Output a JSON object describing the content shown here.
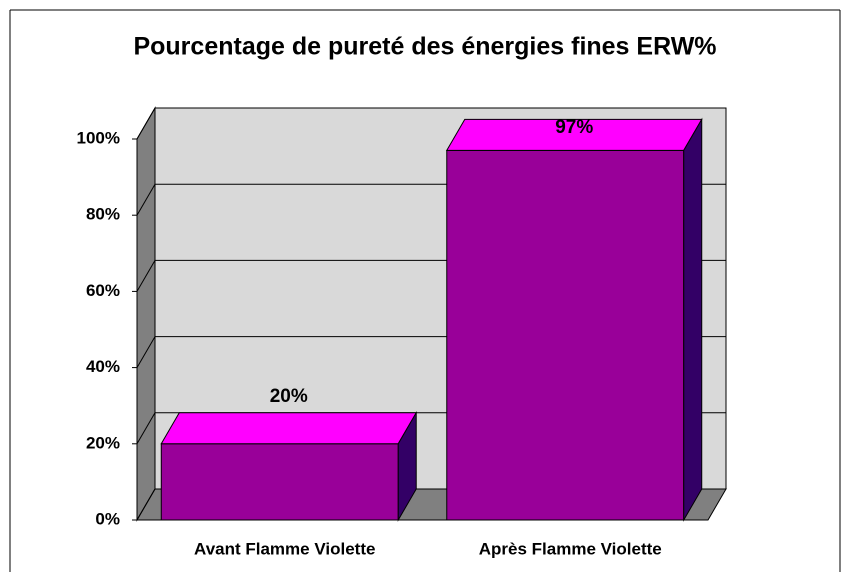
{
  "chart_data": {
    "type": "bar3d",
    "title": "Pourcentage de pureté des énergies fines ERW%",
    "categories": [
      "Avant Flamme Violette",
      "Après Flamme Violette"
    ],
    "values": [
      20,
      97
    ],
    "value_labels": [
      "20%",
      "97%"
    ],
    "ylim": [
      0,
      100
    ],
    "yticks": [
      {
        "value": 0,
        "label": "0%"
      },
      {
        "value": 20,
        "label": "20%"
      },
      {
        "value": 40,
        "label": "40%"
      },
      {
        "value": 60,
        "label": "60%"
      },
      {
        "value": 80,
        "label": "80%"
      },
      {
        "value": 100,
        "label": "100%"
      }
    ],
    "grid": true,
    "colors": {
      "front": "#990099",
      "top": "#ff00ff",
      "side": "#330066",
      "wall": "#d9d9d9",
      "side_wall": "#808080",
      "floor": "#808080"
    }
  }
}
